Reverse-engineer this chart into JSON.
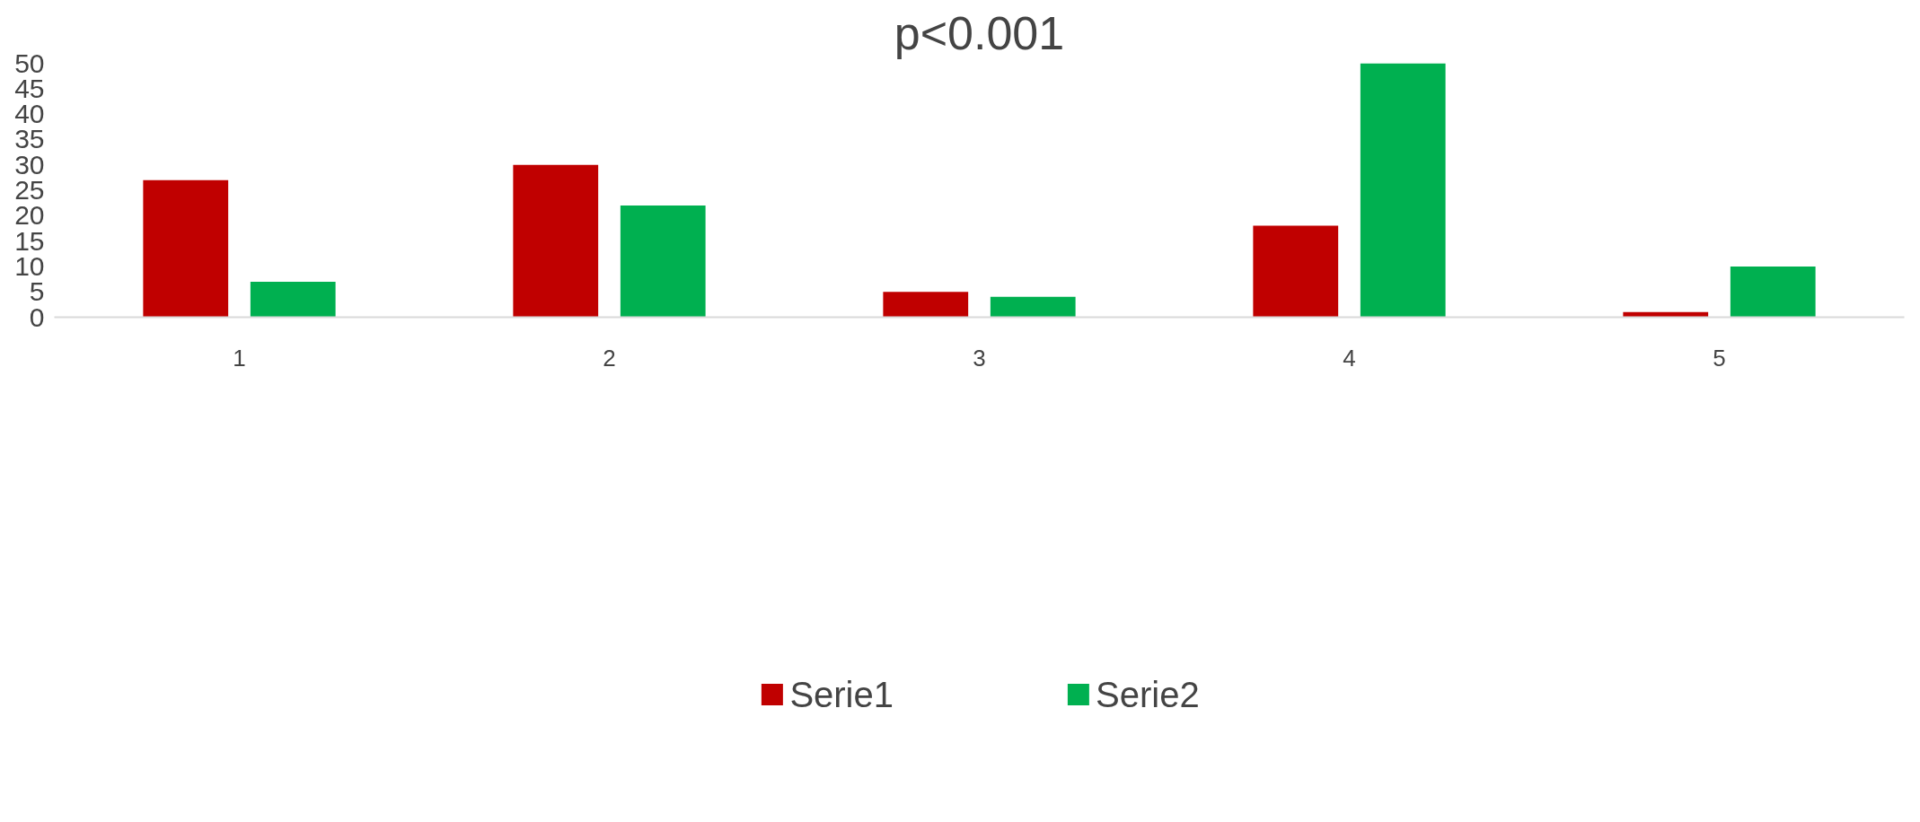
{
  "chart_data": {
    "type": "bar",
    "title": "p<0.001",
    "categories": [
      "1",
      "2",
      "3",
      "4",
      "5"
    ],
    "series": [
      {
        "name": "Serie1",
        "color": "#c00000",
        "values": [
          27,
          30,
          5,
          18,
          1
        ]
      },
      {
        "name": "Serie2",
        "color": "#00b050",
        "values": [
          7,
          22,
          4,
          50,
          10
        ]
      }
    ],
    "ylim": [
      0,
      50
    ],
    "yticks": [
      0,
      5,
      10,
      15,
      20,
      25,
      30,
      35,
      40,
      45,
      50
    ],
    "grid": false,
    "legend": "bottom"
  }
}
